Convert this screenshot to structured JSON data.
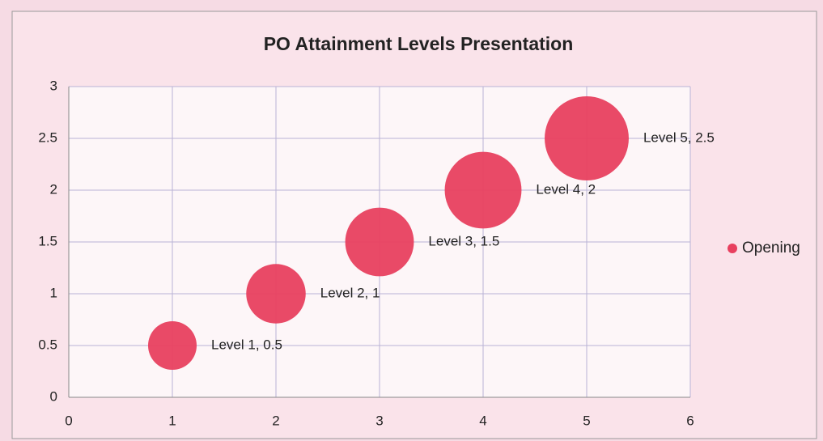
{
  "chart_data": {
    "type": "bubble",
    "title": "PO Attainment Levels Presentation",
    "x": [
      1,
      2,
      3,
      4,
      5
    ],
    "series": [
      {
        "name": "Opening",
        "color": "#e8405f",
        "values": [
          0.5,
          1,
          1.5,
          2,
          2.5
        ],
        "sizes": [
          1,
          1.5,
          2,
          2.5,
          3
        ],
        "value_labels": [
          "Level 1, 0.5",
          "Level 2, 1",
          "Level 3, 1.5",
          "Level 4, 2",
          "Level 5, 2.5"
        ]
      }
    ],
    "xlim": [
      0,
      6
    ],
    "xticks": [
      0,
      1,
      2,
      3,
      4,
      5,
      6
    ],
    "ylim": [
      0,
      3
    ],
    "yticks": [
      0,
      0.5,
      1,
      1.5,
      2,
      2.5,
      3
    ],
    "grid": true,
    "legend": "right"
  }
}
